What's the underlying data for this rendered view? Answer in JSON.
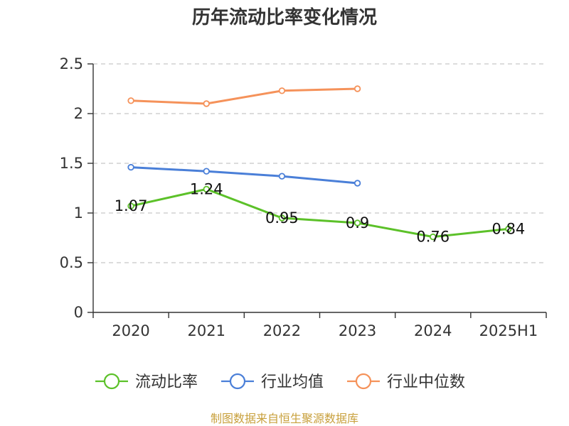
{
  "chart_data": {
    "type": "line",
    "title": "历年流动比率变化情况",
    "categories": [
      "2020",
      "2021",
      "2022",
      "2023",
      "2024",
      "2025H1"
    ],
    "y_ticks": [
      "0",
      "0.5",
      "1",
      "1.5",
      "2",
      "2.5"
    ],
    "ylim": [
      0,
      2.5
    ],
    "grid": true,
    "legend_position": "bottom",
    "series": [
      {
        "name": "流动比率",
        "color": "#5cc129",
        "values": [
          1.07,
          1.24,
          0.95,
          0.9,
          0.76,
          0.84
        ],
        "labels": [
          "1.07",
          "1.24",
          "0.95",
          "0.9",
          "0.76",
          "0.84"
        ],
        "show_labels": true
      },
      {
        "name": "行业均值",
        "color": "#4a7fd8",
        "values": [
          1.46,
          1.42,
          1.37,
          1.3,
          null,
          null
        ],
        "show_labels": false
      },
      {
        "name": "行业中位数",
        "color": "#f5925a",
        "values": [
          2.13,
          2.1,
          2.23,
          2.25,
          null,
          null
        ],
        "show_labels": false
      }
    ]
  },
  "source": "制图数据来自恒生聚源数据库"
}
